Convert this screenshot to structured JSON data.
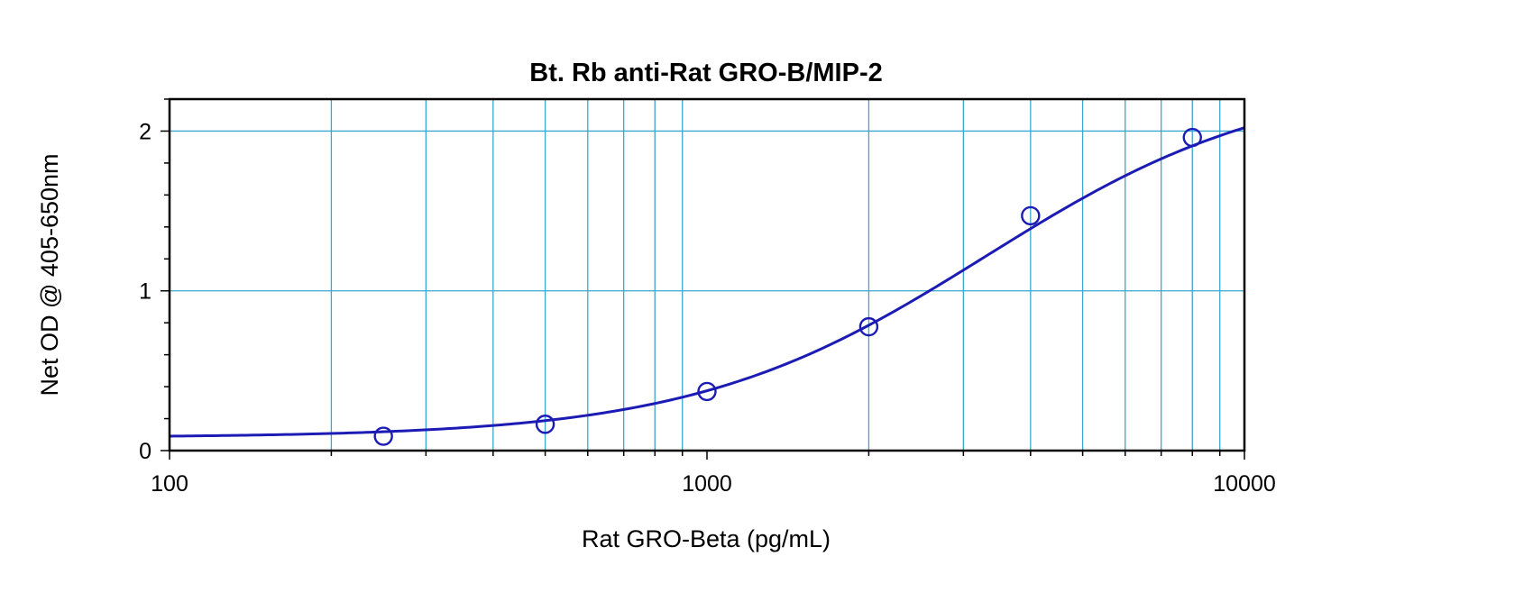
{
  "chart_data": {
    "type": "scatter",
    "title": "Bt. Rb anti-Rat GRO-B/MIP-2",
    "xlabel": "Rat GRO-Beta (pg/mL)",
    "ylabel": "Net OD @ 405-650nm",
    "xscale": "log",
    "xlim": [
      100,
      10000
    ],
    "ylim": [
      0,
      2.2
    ],
    "xticks": [
      100,
      1000,
      10000
    ],
    "xtick_labels": [
      "100",
      "1000",
      "10000"
    ],
    "yticks": [
      0,
      1,
      2
    ],
    "ytick_labels": [
      "0",
      "1",
      "2"
    ],
    "grid": true,
    "series": [
      {
        "x": [
          250,
          500,
          1000,
          2000,
          4000,
          8000
        ],
        "y": [
          0.09,
          0.165,
          0.37,
          0.775,
          1.47,
          1.96
        ],
        "marker": "circle"
      }
    ],
    "fit_curve": {
      "type": "4PL",
      "bottom": 0.082,
      "top": 2.35,
      "ec50": 3300,
      "hill": 1.6
    },
    "colors": {
      "grid": "#3aa7cf",
      "series": "#1c1cb4",
      "frame": "#000000"
    }
  }
}
